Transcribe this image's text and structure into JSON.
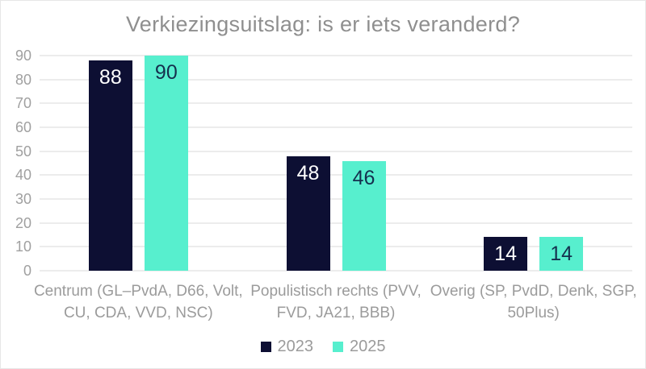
{
  "title": "Verkiezingsuitslag: is er iets veranderd?",
  "colors": {
    "navy": "#0d0f33",
    "mint": "#57efce",
    "grid": "#ececec",
    "title_text": "#8f8f8f",
    "axis_text": "#a0a0a0",
    "category_text": "#9b9b9b",
    "value_on_navy": "#ffffff",
    "value_on_mint": "#15304e",
    "background": "#ffffff",
    "frame_border": "#e7e7e7"
  },
  "legend": {
    "items": [
      {
        "label": "2023",
        "color": "#0d0f33"
      },
      {
        "label": "2025",
        "color": "#57efce"
      }
    ],
    "position": "bottom"
  },
  "yticks": [
    "0",
    "10",
    "20",
    "30",
    "40",
    "50",
    "60",
    "70",
    "80",
    "90"
  ],
  "chart_data": {
    "type": "bar",
    "title": "Verkiezingsuitslag: is er iets veranderd?",
    "categories": [
      "Centrum (GL–PvdA, D66, Volt, CU, CDA, VVD, NSC)",
      "Populistisch rechts (PVV, FVD, JA21, BBB)",
      "Overig (SP, PvdD, Denk, SGP, 50Plus)"
    ],
    "series": [
      {
        "name": "2023",
        "color": "#0d0f33",
        "values": [
          88,
          48,
          14
        ]
      },
      {
        "name": "2025",
        "color": "#57efce",
        "values": [
          90,
          46,
          14
        ]
      }
    ],
    "xlabel": "",
    "ylabel": "",
    "ylim": [
      0,
      90
    ],
    "ytick_step": 10,
    "grid": true,
    "legend_position": "bottom"
  }
}
